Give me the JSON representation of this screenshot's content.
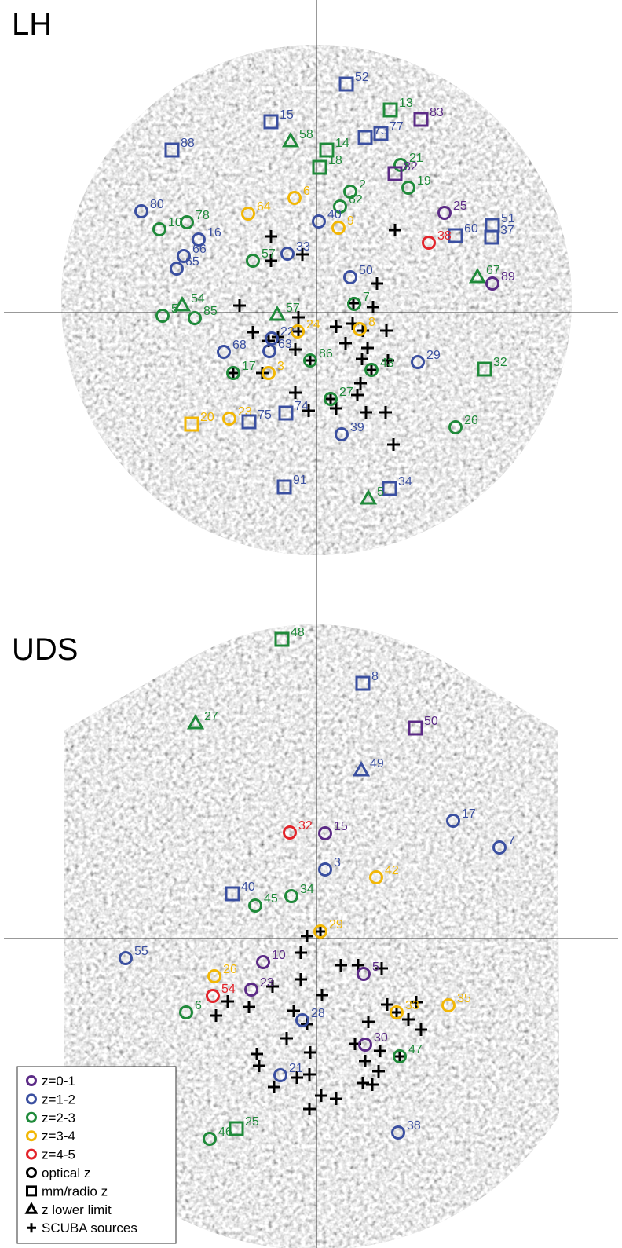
{
  "colors": {
    "z01": "#5b2a86",
    "z12": "#3a4fa0",
    "z23": "#1f8a3a",
    "z34": "#f2b705",
    "z45": "#e3242b",
    "scuba": "#000000",
    "noise_base": "#c8c8c8"
  },
  "legend": {
    "items": [
      {
        "key": "z01",
        "label": "z=0-1",
        "symbol": "circle"
      },
      {
        "key": "z12",
        "label": "z=1-2",
        "symbol": "circle"
      },
      {
        "key": "z23",
        "label": "z=2-3",
        "symbol": "circle"
      },
      {
        "key": "z34",
        "label": "z=3-4",
        "symbol": "circle"
      },
      {
        "key": "z45",
        "label": "z=4-5",
        "symbol": "circle"
      },
      {
        "key": "black",
        "label": "optical z",
        "symbol": "circle"
      },
      {
        "key": "black",
        "label": "mm/radio z",
        "symbol": "square"
      },
      {
        "key": "black",
        "label": "z lower limit",
        "symbol": "triangle"
      },
      {
        "key": "black",
        "label": "SCUBA sources",
        "symbol": "plus"
      }
    ]
  },
  "panels": [
    {
      "id": "lh",
      "title": "LH",
      "sources": [
        {
          "id": "52",
          "z": "z12",
          "type": "square"
        },
        {
          "id": "13",
          "z": "z23",
          "type": "square"
        },
        {
          "id": "83",
          "z": "z01",
          "type": "square"
        },
        {
          "id": "15",
          "z": "z12",
          "type": "square"
        },
        {
          "id": "77",
          "z": "z12",
          "type": "square"
        },
        {
          "id": "73",
          "z": "z12",
          "type": "square"
        },
        {
          "id": "58",
          "z": "z23",
          "type": "triangle"
        },
        {
          "id": "88",
          "z": "z12",
          "type": "square"
        },
        {
          "id": "14",
          "z": "z23",
          "type": "square"
        },
        {
          "id": "18",
          "z": "z23",
          "type": "square"
        },
        {
          "id": "21",
          "z": "z23",
          "type": "circle"
        },
        {
          "id": "82",
          "z": "z01",
          "type": "square"
        },
        {
          "id": "19",
          "z": "z23",
          "type": "circle"
        },
        {
          "id": "2",
          "z": "z23",
          "type": "circle"
        },
        {
          "id": "6",
          "z": "z34",
          "type": "circle"
        },
        {
          "id": "62",
          "z": "z23",
          "type": "circle"
        },
        {
          "id": "64",
          "z": "z34",
          "type": "circle"
        },
        {
          "id": "25",
          "z": "z01",
          "type": "circle"
        },
        {
          "id": "80",
          "z": "z12",
          "type": "circle"
        },
        {
          "id": "78",
          "z": "z23",
          "type": "circle"
        },
        {
          "id": "10",
          "z": "z23",
          "type": "circle"
        },
        {
          "id": "40",
          "z": "z12",
          "type": "circle"
        },
        {
          "id": "9",
          "z": "z34",
          "type": "circle"
        },
        {
          "id": "51",
          "z": "z12",
          "type": "square"
        },
        {
          "id": "60",
          "z": "z12",
          "type": "square"
        },
        {
          "id": "37",
          "z": "z12",
          "type": "square"
        },
        {
          "id": "16",
          "z": "z12",
          "type": "circle"
        },
        {
          "id": "38",
          "z": "z45",
          "type": "circle"
        },
        {
          "id": "66",
          "z": "z12",
          "type": "circle"
        },
        {
          "id": "33",
          "z": "z12",
          "type": "circle"
        },
        {
          "id": "65",
          "z": "z12",
          "type": "circle"
        },
        {
          "id": "57",
          "z": "z23",
          "type": "circle"
        },
        {
          "id": "67",
          "z": "z23",
          "type": "triangle"
        },
        {
          "id": "89",
          "z": "z01",
          "type": "circle"
        },
        {
          "id": "50",
          "z": "z12",
          "type": "circle"
        },
        {
          "id": "7",
          "z": "z23",
          "type": "circle"
        },
        {
          "id": "54",
          "z": "z23",
          "type": "triangle"
        },
        {
          "id": "5",
          "z": "z23",
          "type": "circle"
        },
        {
          "id": "85",
          "z": "z23",
          "type": "circle"
        },
        {
          "id": "57",
          "z": "z23",
          "type": "triangle"
        },
        {
          "id": "24",
          "z": "z34",
          "type": "circle"
        },
        {
          "id": "8",
          "z": "z34",
          "type": "circle"
        },
        {
          "id": "22",
          "z": "z12",
          "type": "circle"
        },
        {
          "id": "63",
          "z": "z12",
          "type": "circle"
        },
        {
          "id": "68",
          "z": "z12",
          "type": "circle"
        },
        {
          "id": "86",
          "z": "z23",
          "type": "circle"
        },
        {
          "id": "29",
          "z": "z12",
          "type": "circle"
        },
        {
          "id": "32",
          "z": "z23",
          "type": "square"
        },
        {
          "id": "17",
          "z": "z23",
          "type": "circle"
        },
        {
          "id": "3",
          "z": "z34",
          "type": "circle"
        },
        {
          "id": "43",
          "z": "z23",
          "type": "circle"
        },
        {
          "id": "27",
          "z": "z23",
          "type": "circle"
        },
        {
          "id": "20",
          "z": "z34",
          "type": "square"
        },
        {
          "id": "23",
          "z": "z34",
          "type": "circle"
        },
        {
          "id": "75",
          "z": "z12",
          "type": "square"
        },
        {
          "id": "74",
          "z": "z12",
          "type": "square"
        },
        {
          "id": "26",
          "z": "z23",
          "type": "circle"
        },
        {
          "id": "39",
          "z": "z12",
          "type": "circle"
        },
        {
          "id": "91",
          "z": "z12",
          "type": "square"
        },
        {
          "id": "34",
          "z": "z12",
          "type": "square"
        },
        {
          "id": "5",
          "z": "z23",
          "type": "triangle"
        }
      ]
    },
    {
      "id": "uds",
      "title": "UDS",
      "sources": [
        {
          "id": "48",
          "z": "z23",
          "type": "square"
        },
        {
          "id": "8",
          "z": "z12",
          "type": "square"
        },
        {
          "id": "27",
          "z": "z23",
          "type": "triangle"
        },
        {
          "id": "50",
          "z": "z01",
          "type": "square"
        },
        {
          "id": "49",
          "z": "z12",
          "type": "triangle"
        },
        {
          "id": "17",
          "z": "z12",
          "type": "circle"
        },
        {
          "id": "32",
          "z": "z45",
          "type": "circle"
        },
        {
          "id": "15",
          "z": "z01",
          "type": "circle"
        },
        {
          "id": "7",
          "z": "z12",
          "type": "circle"
        },
        {
          "id": "3",
          "z": "z12",
          "type": "circle"
        },
        {
          "id": "42",
          "z": "z34",
          "type": "circle"
        },
        {
          "id": "40",
          "z": "z12",
          "type": "square"
        },
        {
          "id": "34",
          "z": "z23",
          "type": "circle"
        },
        {
          "id": "45",
          "z": "z23",
          "type": "circle"
        },
        {
          "id": "29",
          "z": "z34",
          "type": "circle"
        },
        {
          "id": "55",
          "z": "z12",
          "type": "circle"
        },
        {
          "id": "10",
          "z": "z01",
          "type": "circle"
        },
        {
          "id": "5",
          "z": "z01",
          "type": "circle"
        },
        {
          "id": "26",
          "z": "z34",
          "type": "circle"
        },
        {
          "id": "23",
          "z": "z01",
          "type": "circle"
        },
        {
          "id": "54",
          "z": "z45",
          "type": "circle"
        },
        {
          "id": "33",
          "z": "z34",
          "type": "circle"
        },
        {
          "id": "35",
          "z": "z34",
          "type": "circle"
        },
        {
          "id": "6",
          "z": "z23",
          "type": "circle"
        },
        {
          "id": "28",
          "z": "z12",
          "type": "circle"
        },
        {
          "id": "30",
          "z": "z01",
          "type": "circle"
        },
        {
          "id": "47",
          "z": "z23",
          "type": "circle"
        },
        {
          "id": "21",
          "z": "z12",
          "type": "circle"
        },
        {
          "id": "25",
          "z": "z23",
          "type": "square"
        },
        {
          "id": "46",
          "z": "z23",
          "type": "circle"
        },
        {
          "id": "38",
          "z": "z12",
          "type": "circle"
        }
      ]
    }
  ]
}
